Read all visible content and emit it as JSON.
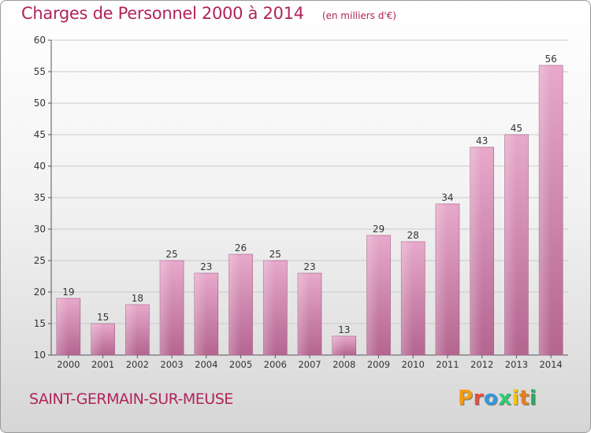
{
  "chart_data": {
    "type": "bar",
    "title": "Charges de Personnel 2000 à 2014",
    "subtitle": "(en milliers d'€)",
    "categories": [
      "2000",
      "2001",
      "2002",
      "2003",
      "2004",
      "2005",
      "2006",
      "2007",
      "2008",
      "2009",
      "2010",
      "2011",
      "2012",
      "2013",
      "2014"
    ],
    "values": [
      19,
      15,
      18,
      25,
      23,
      26,
      25,
      23,
      13,
      29,
      28,
      34,
      43,
      45,
      56
    ],
    "ylim": [
      10,
      60
    ],
    "yticks": [
      10,
      15,
      20,
      25,
      30,
      35,
      40,
      45,
      50,
      55,
      60
    ],
    "grid": true,
    "bar_color": "#d98fb6"
  },
  "footer": {
    "town": "SAINT-GERMAIN-SUR-MEUSE",
    "logo_letters": [
      "P",
      "r",
      "o",
      "x",
      "i",
      "t",
      "i"
    ],
    "logo_colors": [
      "#f39c12",
      "#e74c3c",
      "#3498db",
      "#2ecc71",
      "#f1c40f",
      "#e67e22",
      "#27ae60"
    ]
  }
}
